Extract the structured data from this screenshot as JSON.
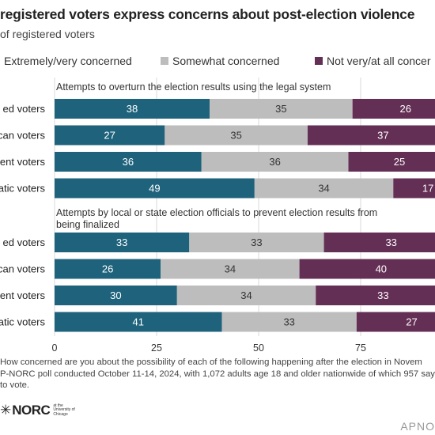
{
  "title": "registered voters express concerns about post-election violence",
  "subtitle": "of registered voters",
  "legend": [
    {
      "label": "Extremely/very concerned",
      "color": "#1e627c"
    },
    {
      "label": "Somewhat concerned",
      "color": "#bdbdbd"
    },
    {
      "label": "Not very/at all concer",
      "color": "#642f55"
    }
  ],
  "chart_data": {
    "type": "bar",
    "orientation": "horizontal",
    "stacked": true,
    "xlim": [
      0,
      100
    ],
    "xticks": [
      "0",
      "25",
      "50",
      "75"
    ],
    "grid": true,
    "legend_position": "top",
    "series_names": [
      "Extremely/very concerned",
      "Somewhat concerned",
      "Not very/at all concer"
    ],
    "groups": [
      {
        "title_lines": [
          "Attempts to overturn the election results using the legal system"
        ],
        "rows": [
          {
            "label": "ed voters",
            "values": [
              38,
              35,
              26
            ]
          },
          {
            "label": "can voters",
            "values": [
              27,
              35,
              37
            ]
          },
          {
            "label": "ent voters",
            "values": [
              36,
              36,
              25
            ]
          },
          {
            "label": "atic voters",
            "values": [
              49,
              34,
              17
            ]
          }
        ]
      },
      {
        "title_lines": [
          "Attempts by local or state election officials to prevent election results from",
          "being finalized"
        ],
        "rows": [
          {
            "label": "ed voters",
            "values": [
              33,
              33,
              33
            ]
          },
          {
            "label": "can voters",
            "values": [
              26,
              34,
              40
            ]
          },
          {
            "label": "ent voters",
            "values": [
              30,
              34,
              33
            ]
          },
          {
            "label": "atic voters",
            "values": [
              41,
              33,
              27
            ]
          }
        ]
      }
    ]
  },
  "note_lines": [
    "How concerned are you about the possibility of each of the following happening after the election in Novem",
    "P-NORC poll conducted October 11-14, 2024, with 1,072 adults age 18 and older nationwide of which 957 say",
    "to vote."
  ],
  "logo": {
    "star": "✳",
    "text": "NORC",
    "small_text": "at the University of Chicago"
  },
  "source_mark": "APNO"
}
